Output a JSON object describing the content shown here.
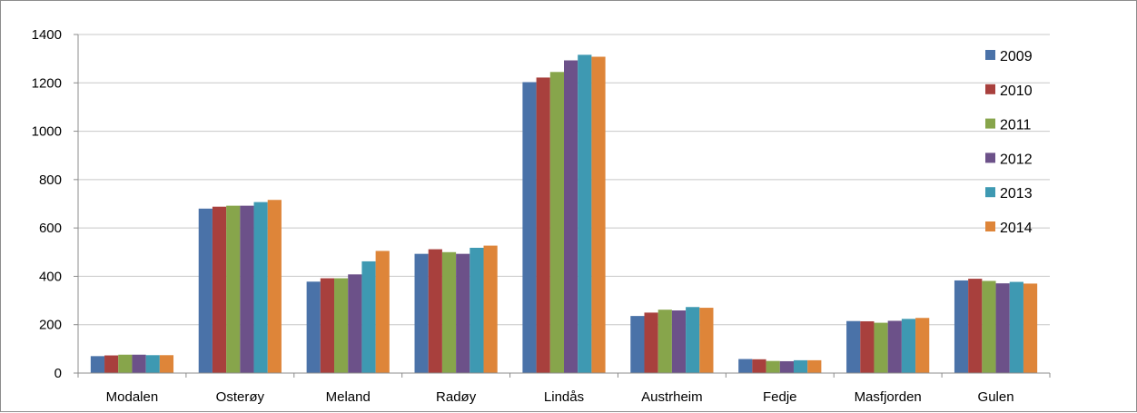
{
  "chart_data": {
    "type": "bar",
    "categories": [
      "Modalen",
      "Osterøy",
      "Meland",
      "Radøy",
      "Lindås",
      "Austrheim",
      "Fedje",
      "Masfjorden",
      "Gulen"
    ],
    "series": [
      {
        "name": "2009",
        "color": "#4a72a8",
        "values": [
          70,
          680,
          378,
          493,
          1203,
          236,
          58,
          215,
          383
        ]
      },
      {
        "name": "2010",
        "color": "#a8403d",
        "values": [
          73,
          688,
          392,
          512,
          1222,
          250,
          57,
          214,
          390
        ]
      },
      {
        "name": "2011",
        "color": "#87a54b",
        "values": [
          76,
          692,
          392,
          500,
          1245,
          262,
          50,
          208,
          381
        ]
      },
      {
        "name": "2012",
        "color": "#6c5189",
        "values": [
          76,
          692,
          408,
          493,
          1293,
          259,
          49,
          216,
          371
        ]
      },
      {
        "name": "2013",
        "color": "#3e99b2",
        "values": [
          74,
          707,
          462,
          518,
          1316,
          273,
          53,
          224,
          377
        ]
      },
      {
        "name": "2014",
        "color": "#de8539",
        "values": [
          74,
          716,
          505,
          527,
          1308,
          270,
          53,
          228,
          370
        ]
      }
    ],
    "yticks": [
      "0",
      "200",
      "400",
      "600",
      "800",
      "1000",
      "1200",
      "1400"
    ],
    "ylim": [
      0,
      1400
    ],
    "grid": true,
    "legend_position": "right",
    "title": "",
    "xlabel": "",
    "ylabel": ""
  }
}
